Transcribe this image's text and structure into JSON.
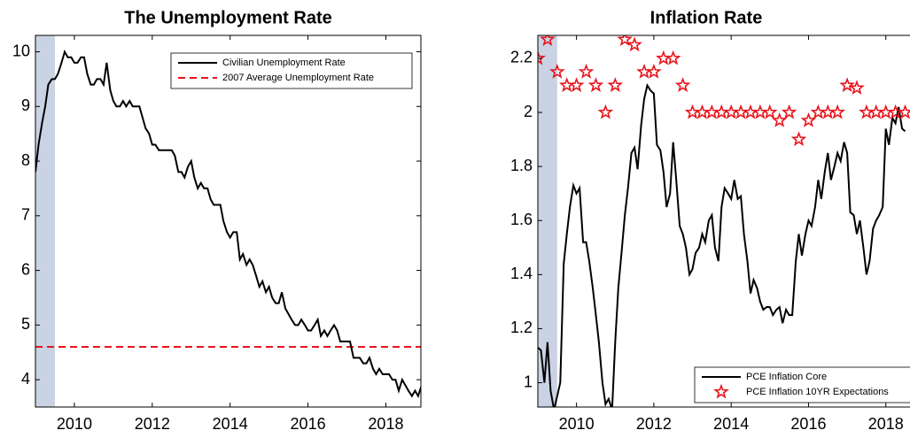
{
  "chart_data": [
    {
      "type": "line",
      "title": "The Unemployment Rate",
      "xlim": [
        2009,
        2018.9
      ],
      "ylim": [
        3.5,
        10.3
      ],
      "xticks": [
        2010,
        2012,
        2014,
        2016,
        2018
      ],
      "yticks": [
        4,
        5,
        6,
        7,
        8,
        9,
        10
      ],
      "shaded_x": [
        2009,
        2009.5
      ],
      "shade_color": "#c9d3e3",
      "legend_position": "upper right",
      "series": [
        {
          "name": "Civilian Unemployment Rate",
          "color": "#000000",
          "style": "line",
          "x": [
            2009,
            2009.08,
            2009.17,
            2009.25,
            2009.33,
            2009.42,
            2009.5,
            2009.58,
            2009.67,
            2009.75,
            2009.83,
            2009.92,
            2010,
            2010.08,
            2010.17,
            2010.25,
            2010.33,
            2010.42,
            2010.5,
            2010.58,
            2010.67,
            2010.75,
            2010.83,
            2010.92,
            2011,
            2011.08,
            2011.17,
            2011.25,
            2011.33,
            2011.42,
            2011.5,
            2011.58,
            2011.67,
            2011.75,
            2011.83,
            2011.92,
            2012,
            2012.08,
            2012.17,
            2012.25,
            2012.33,
            2012.42,
            2012.5,
            2012.58,
            2012.67,
            2012.75,
            2012.83,
            2012.92,
            2013,
            2013.08,
            2013.17,
            2013.25,
            2013.33,
            2013.42,
            2013.5,
            2013.58,
            2013.67,
            2013.75,
            2013.83,
            2013.92,
            2014,
            2014.08,
            2014.17,
            2014.25,
            2014.33,
            2014.42,
            2014.5,
            2014.58,
            2014.67,
            2014.75,
            2014.83,
            2014.92,
            2015,
            2015.08,
            2015.17,
            2015.25,
            2015.33,
            2015.42,
            2015.5,
            2015.58,
            2015.67,
            2015.75,
            2015.83,
            2015.92,
            2016,
            2016.08,
            2016.17,
            2016.25,
            2016.33,
            2016.42,
            2016.5,
            2016.58,
            2016.67,
            2016.75,
            2016.83,
            2016.92,
            2017,
            2017.08,
            2017.17,
            2017.25,
            2017.33,
            2017.42,
            2017.5,
            2017.58,
            2017.67,
            2017.75,
            2017.83,
            2017.92,
            2018,
            2018.08,
            2018.17,
            2018.25,
            2018.33,
            2018.42,
            2018.5,
            2018.58,
            2018.67,
            2018.75,
            2018.83,
            2018.92
          ],
          "values": [
            7.8,
            8.3,
            8.7,
            9.0,
            9.4,
            9.5,
            9.5,
            9.6,
            9.8,
            10.0,
            9.9,
            9.9,
            9.8,
            9.8,
            9.9,
            9.9,
            9.6,
            9.4,
            9.4,
            9.5,
            9.5,
            9.4,
            9.8,
            9.3,
            9.1,
            9.0,
            9.0,
            9.1,
            9.0,
            9.1,
            9.0,
            9.0,
            9.0,
            8.8,
            8.6,
            8.5,
            8.3,
            8.3,
            8.2,
            8.2,
            8.2,
            8.2,
            8.2,
            8.1,
            7.8,
            7.8,
            7.7,
            7.9,
            8.0,
            7.7,
            7.5,
            7.6,
            7.5,
            7.5,
            7.3,
            7.2,
            7.2,
            7.2,
            6.9,
            6.7,
            6.6,
            6.7,
            6.7,
            6.2,
            6.3,
            6.1,
            6.2,
            6.1,
            5.9,
            5.7,
            5.8,
            5.6,
            5.7,
            5.5,
            5.4,
            5.4,
            5.6,
            5.3,
            5.2,
            5.1,
            5.0,
            5.0,
            5.1,
            5.0,
            4.9,
            4.9,
            5.0,
            5.1,
            4.8,
            4.9,
            4.8,
            4.9,
            5.0,
            4.9,
            4.7,
            4.7,
            4.7,
            4.7,
            4.4,
            4.4,
            4.4,
            4.3,
            4.3,
            4.4,
            4.2,
            4.1,
            4.2,
            4.1,
            4.1,
            4.1,
            4.0,
            4.0,
            3.8,
            4.0,
            3.9,
            3.8,
            3.7,
            3.8,
            3.7,
            3.9
          ]
        }
      ],
      "reference_lines": [
        {
          "name": "2007 Average Unemployment Rate",
          "value": 4.6,
          "color": "#e8141c"
        }
      ]
    },
    {
      "type": "line",
      "title": "Inflation Rate",
      "xlim": [
        2009,
        2018.9
      ],
      "ylim": [
        0.91,
        2.285
      ],
      "xticks": [
        2010,
        2012,
        2014,
        2016,
        2018
      ],
      "yticks": [
        1,
        1.2,
        1.4,
        1.6,
        1.8,
        2,
        2.2
      ],
      "shaded_x": [
        2009,
        2009.5
      ],
      "shade_color": "#c9d3e3",
      "legend_position": "lower right",
      "series": [
        {
          "name": "PCE Inflation Core",
          "color": "#000000",
          "style": "line",
          "x": [
            2009,
            2009.08,
            2009.17,
            2009.25,
            2009.33,
            2009.42,
            2009.5,
            2009.58,
            2009.67,
            2009.75,
            2009.83,
            2009.92,
            2010,
            2010.08,
            2010.17,
            2010.25,
            2010.33,
            2010.42,
            2010.5,
            2010.58,
            2010.67,
            2010.75,
            2010.83,
            2010.92,
            2011,
            2011.08,
            2011.17,
            2011.25,
            2011.33,
            2011.42,
            2011.5,
            2011.58,
            2011.67,
            2011.75,
            2011.83,
            2011.92,
            2012,
            2012.08,
            2012.17,
            2012.25,
            2012.33,
            2012.42,
            2012.5,
            2012.58,
            2012.67,
            2012.75,
            2012.83,
            2012.92,
            2013,
            2013.08,
            2013.17,
            2013.25,
            2013.33,
            2013.42,
            2013.5,
            2013.58,
            2013.67,
            2013.75,
            2013.83,
            2013.92,
            2014,
            2014.08,
            2014.17,
            2014.25,
            2014.33,
            2014.42,
            2014.5,
            2014.58,
            2014.67,
            2014.75,
            2014.83,
            2014.92,
            2015,
            2015.08,
            2015.17,
            2015.25,
            2015.33,
            2015.42,
            2015.5,
            2015.58,
            2015.67,
            2015.75,
            2015.83,
            2015.92,
            2016,
            2016.08,
            2016.17,
            2016.25,
            2016.33,
            2016.42,
            2016.5,
            2016.58,
            2016.67,
            2016.75,
            2016.83,
            2016.92,
            2017,
            2017.08,
            2017.17,
            2017.25,
            2017.33,
            2017.42,
            2017.5,
            2017.58,
            2017.67,
            2017.75,
            2017.83,
            2017.92,
            2018,
            2018.08,
            2018.17,
            2018.25,
            2018.33,
            2018.42,
            2018.5
          ],
          "values": [
            1.13,
            1.12,
            1.0,
            1.15,
            0.97,
            0.9,
            0.95,
            1.0,
            1.44,
            1.55,
            1.65,
            1.73,
            1.7,
            1.72,
            1.52,
            1.52,
            1.45,
            1.35,
            1.25,
            1.15,
            1.0,
            0.92,
            0.94,
            0.9,
            1.15,
            1.35,
            1.49,
            1.62,
            1.72,
            1.85,
            1.87,
            1.79,
            1.95,
            2.05,
            2.1,
            2.08,
            2.07,
            1.88,
            1.86,
            1.78,
            1.65,
            1.7,
            1.89,
            1.75,
            1.58,
            1.55,
            1.5,
            1.4,
            1.42,
            1.48,
            1.5,
            1.55,
            1.52,
            1.6,
            1.62,
            1.5,
            1.45,
            1.65,
            1.72,
            1.7,
            1.68,
            1.75,
            1.68,
            1.69,
            1.55,
            1.45,
            1.33,
            1.38,
            1.35,
            1.3,
            1.27,
            1.28,
            1.28,
            1.25,
            1.27,
            1.28,
            1.22,
            1.27,
            1.25,
            1.25,
            1.45,
            1.55,
            1.47,
            1.55,
            1.6,
            1.58,
            1.65,
            1.75,
            1.68,
            1.78,
            1.85,
            1.75,
            1.8,
            1.85,
            1.82,
            1.89,
            1.85,
            1.63,
            1.62,
            1.55,
            1.6,
            1.5,
            1.4,
            1.45,
            1.57,
            1.6,
            1.62,
            1.65,
            1.94,
            1.88,
            1.98,
            1.96,
            2.02,
            1.94,
            1.93
          ]
        },
        {
          "name": "PCE Inflation 10YR Expectations",
          "color": "#e8141c",
          "style": "star",
          "x": [
            2009,
            2009.25,
            2009.5,
            2009.75,
            2010,
            2010.25,
            2010.5,
            2010.75,
            2011,
            2011.25,
            2011.5,
            2011.75,
            2012,
            2012.25,
            2012.5,
            2012.75,
            2013,
            2013.25,
            2013.5,
            2013.75,
            2014,
            2014.25,
            2014.5,
            2014.75,
            2015,
            2015.25,
            2015.5,
            2015.75,
            2016,
            2016.25,
            2016.5,
            2016.75,
            2017,
            2017.25,
            2017.5,
            2017.75,
            2018,
            2018.25,
            2018.5
          ],
          "values": [
            2.2,
            2.27,
            2.15,
            2.1,
            2.1,
            2.15,
            2.1,
            2.0,
            2.1,
            2.27,
            2.25,
            2.15,
            2.15,
            2.2,
            2.2,
            2.1,
            2.0,
            2.0,
            2.0,
            2.0,
            2.0,
            2.0,
            2.0,
            2.0,
            2.0,
            1.97,
            2.0,
            1.9,
            1.97,
            2.0,
            2.0,
            2.0,
            2.1,
            2.09,
            2.0,
            2.0,
            2.0,
            2.0,
            2.0
          ]
        }
      ]
    }
  ]
}
